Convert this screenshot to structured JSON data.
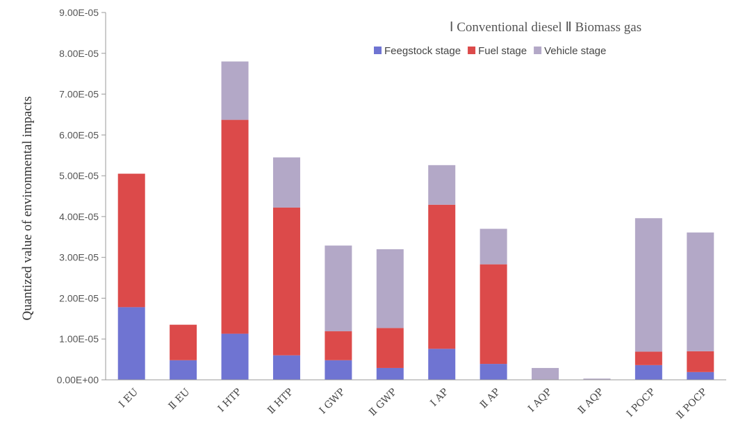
{
  "chart_data": {
    "type": "bar",
    "stacked": true,
    "ylabel": "Quantized value of environmental impacts",
    "annotation": "Ⅰ Conventional diesel Ⅱ Biomass gas",
    "legend_position": "top-right",
    "categories": [
      "Ⅰ EU",
      "Ⅱ EU",
      "Ⅰ HTP",
      "Ⅱ HTP",
      "Ⅰ GWP",
      "Ⅱ GWP",
      "Ⅰ AP",
      "Ⅱ AP",
      "Ⅰ AQP",
      "Ⅱ AQP",
      "Ⅰ POCP",
      "Ⅱ POCP"
    ],
    "y_ticks": [
      "0.00E+00",
      "1.00E-05",
      "2.00E-05",
      "3.00E-05",
      "4.00E-05",
      "5.00E-05",
      "6.00E-05",
      "7.00E-05",
      "8.00E-05",
      "9.00E-05"
    ],
    "ylim": [
      0,
      9e-05
    ],
    "grid": false,
    "series": [
      {
        "name": "Feegstock stage",
        "color": "#6f74d2",
        "values": [
          1.78e-05,
          4.8e-06,
          1.13e-05,
          6e-06,
          4.8e-06,
          2.9e-06,
          7.6e-06,
          3.9e-06,
          0.0,
          0.0,
          3.6e-06,
          1.9e-06
        ]
      },
      {
        "name": "Fuel stage",
        "color": "#dc4a4a",
        "values": [
          3.27e-05,
          8.7e-06,
          5.24e-05,
          3.62e-05,
          7.1e-06,
          9.8e-06,
          3.53e-05,
          2.44e-05,
          0.0,
          0.0,
          3.3e-06,
          5.1e-06
        ]
      },
      {
        "name": "Vehicle stage",
        "color": "#b3a8c7",
        "values": [
          0.0,
          0.0,
          1.43e-05,
          1.23e-05,
          2.1e-05,
          1.93e-05,
          9.7e-06,
          8.7e-06,
          2.9e-06,
          3e-07,
          3.27e-05,
          2.91e-05
        ]
      }
    ]
  }
}
